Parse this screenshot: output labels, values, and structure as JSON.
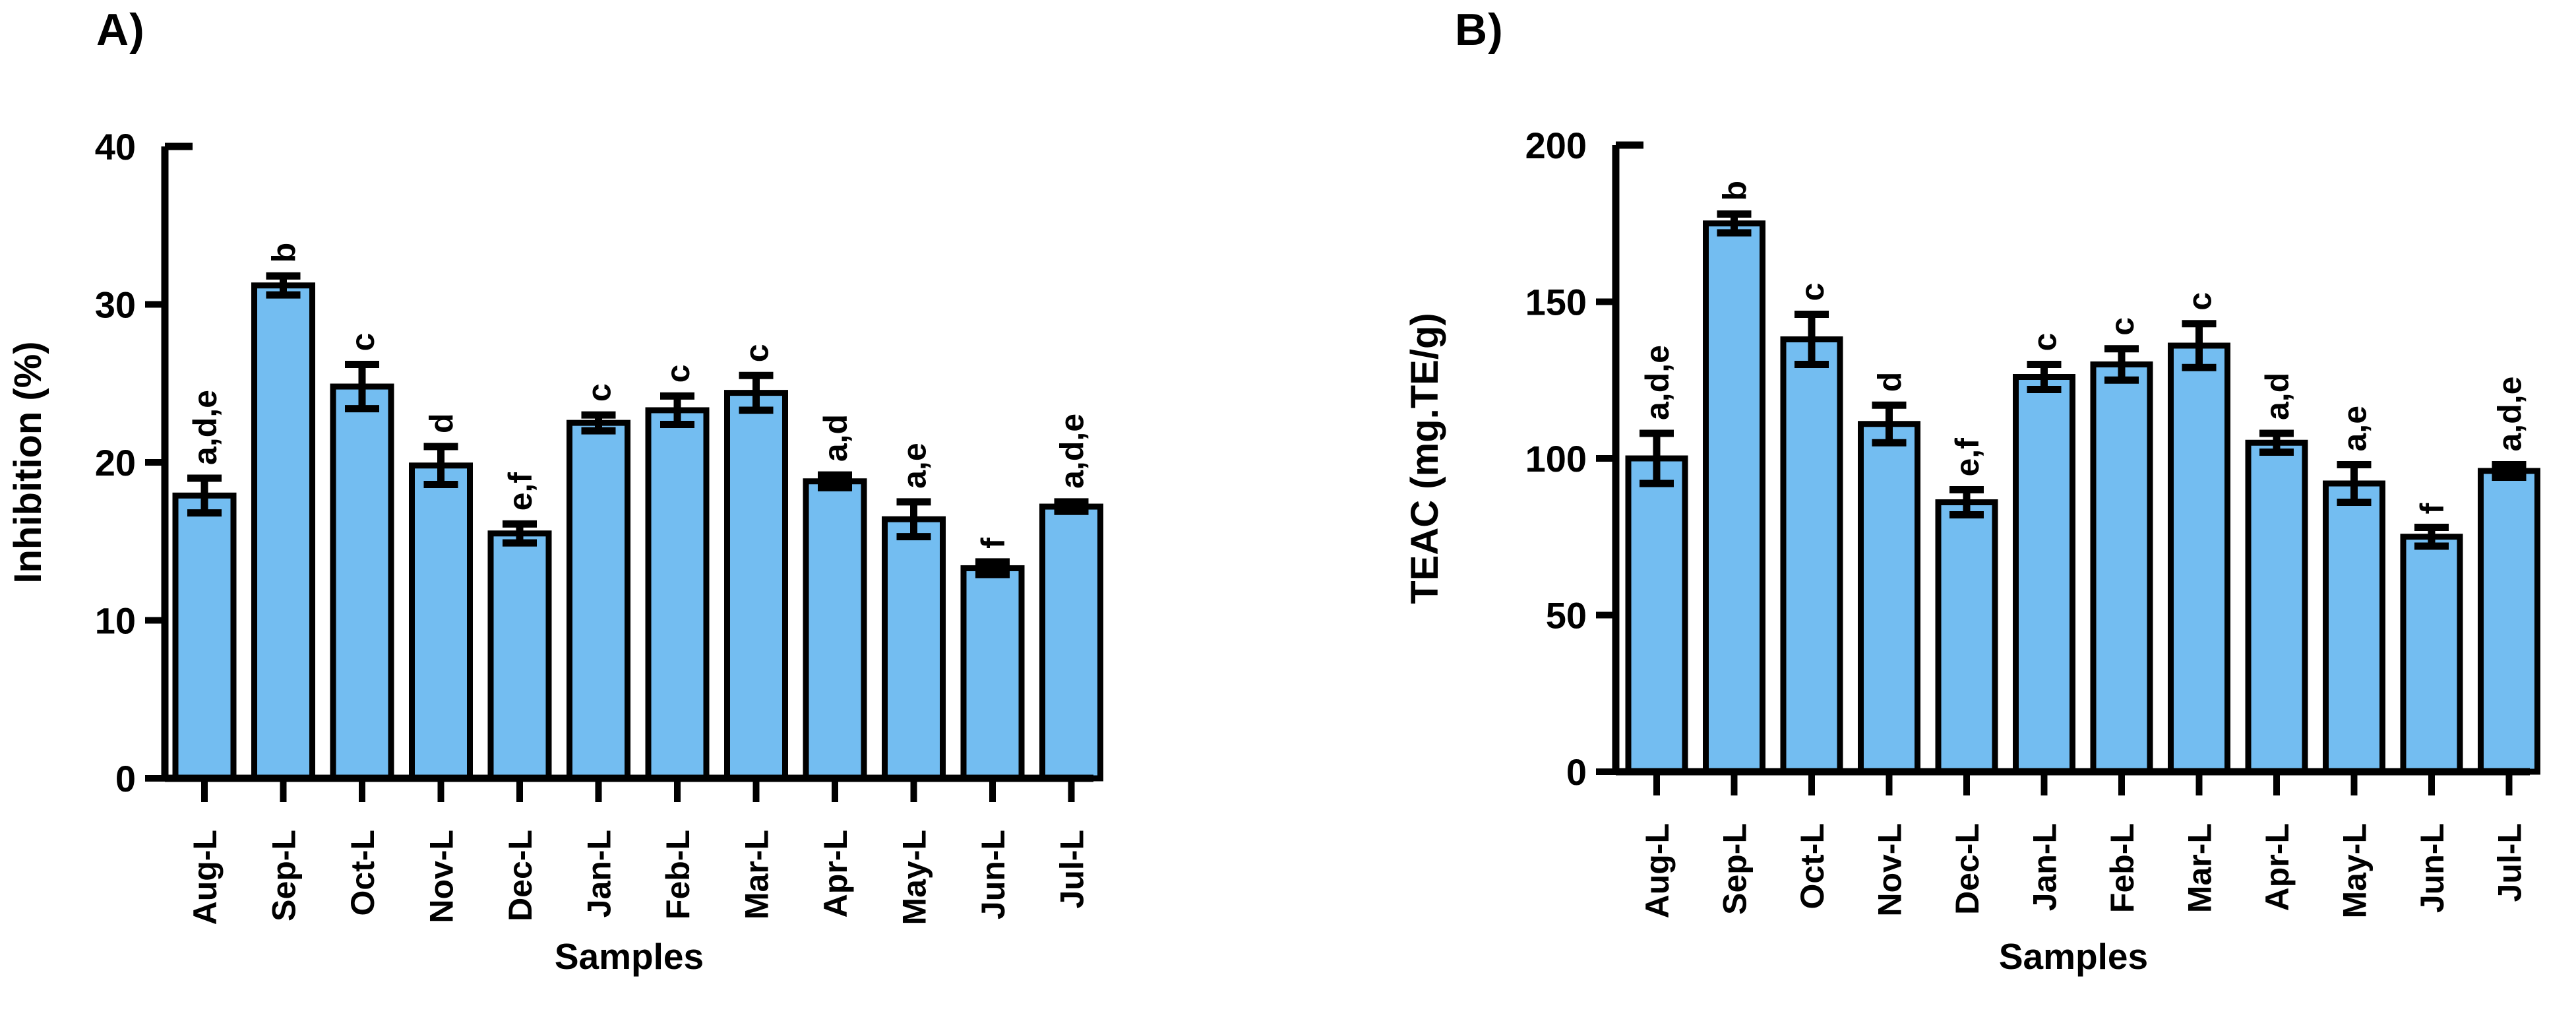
{
  "page": {
    "background": "#ffffff",
    "text_color": "#000000"
  },
  "panels": [
    {
      "title": "A)"
    },
    {
      "title": "B)"
    }
  ],
  "chart_data": [
    {
      "type": "bar",
      "panel": "A",
      "title": "",
      "xlabel": "Samples",
      "ylabel": "Inhibition (%)",
      "categories": [
        "Aug-L",
        "Sep-L",
        "Oct-L",
        "Nov-L",
        "Dec-L",
        "Jan-L",
        "Feb-L",
        "Mar-L",
        "Apr-L",
        "May-L",
        "Jun-L",
        "Jul-L"
      ],
      "values": [
        17.9,
        31.2,
        24.8,
        19.8,
        15.5,
        22.5,
        23.3,
        24.4,
        18.8,
        16.4,
        13.3,
        17.2
      ],
      "errors": [
        1.1,
        0.6,
        1.4,
        1.2,
        0.6,
        0.5,
        0.9,
        1.1,
        0.4,
        1.1,
        0.4,
        0.3
      ],
      "sig_letters": [
        "a,d,e",
        "b",
        "c",
        "d",
        "e,f",
        "c",
        "c",
        "c",
        "a,d",
        "a,e",
        "f",
        "a,d,e"
      ],
      "ylim": [
        0,
        40
      ],
      "yticks": [
        0,
        10,
        20,
        30,
        40
      ],
      "grid": false,
      "legend": null,
      "bar_color": "#73BDF1",
      "bar_border_color": "#000000",
      "error_bar_color": "#000000"
    },
    {
      "type": "bar",
      "panel": "B",
      "title": "",
      "xlabel": "Samples",
      "ylabel": "TEAC (mg.TE/g)",
      "categories": [
        "Aug-L",
        "Sep-L",
        "Oct-L",
        "Nov-L",
        "Dec-L",
        "Jan-L",
        "Feb-L",
        "Mar-L",
        "Apr-L",
        "May-L",
        "Jun-L",
        "Jul-L"
      ],
      "values": [
        100,
        175,
        138,
        111,
        86,
        126,
        130,
        136,
        105,
        92,
        75,
        96
      ],
      "errors": [
        8,
        3,
        8,
        6,
        4,
        4,
        5,
        7,
        3,
        6,
        3,
        2
      ],
      "sig_letters": [
        "a,d,e",
        "b",
        "c",
        "d",
        "e,f",
        "c",
        "c",
        "c",
        "a,d",
        "a,e",
        "f",
        "a,d,e"
      ],
      "ylim": [
        0,
        200
      ],
      "yticks": [
        0,
        50,
        100,
        150,
        200
      ],
      "grid": false,
      "legend": null,
      "bar_color": "#73BDF1",
      "bar_border_color": "#000000",
      "error_bar_color": "#000000"
    }
  ]
}
